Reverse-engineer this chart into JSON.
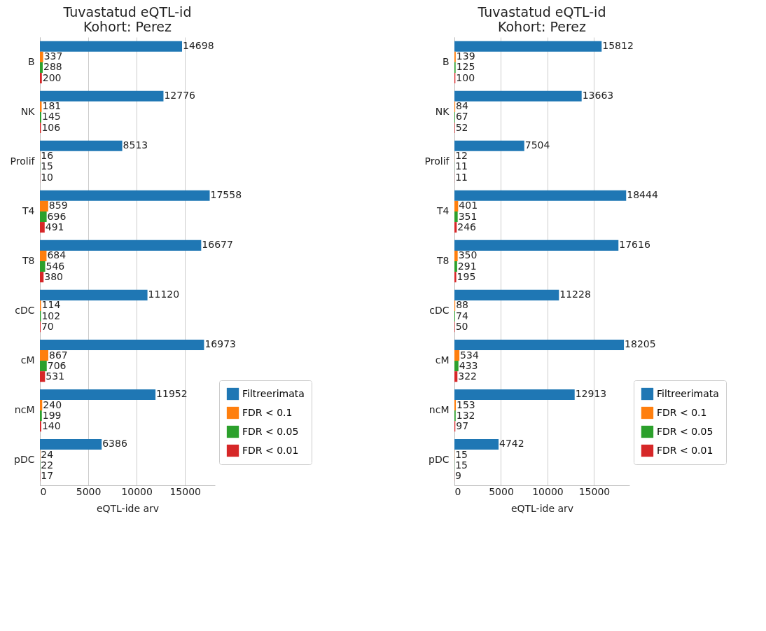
{
  "chart_data": [
    {
      "type": "bar",
      "orientation": "horizontal",
      "title": "Tuvastatud eQTL-id\nKohort: Perez",
      "xlabel": "eQTL-ide arv",
      "categories": [
        "B",
        "NK",
        "Prolif",
        "T4",
        "T8",
        "cDC",
        "cM",
        "ncM",
        "pDC"
      ],
      "series": [
        {
          "name": "Filtreerimata",
          "color": "#1f77b4",
          "values": [
            14698,
            12776,
            8513,
            17558,
            16677,
            11120,
            16973,
            11952,
            6386
          ]
        },
        {
          "name": "FDR < 0.1",
          "color": "#ff7f0e",
          "values": [
            337,
            181,
            16,
            859,
            684,
            114,
            867,
            240,
            24
          ]
        },
        {
          "name": "FDR < 0.05",
          "color": "#2ca02c",
          "values": [
            288,
            145,
            15,
            696,
            546,
            102,
            706,
            199,
            22
          ]
        },
        {
          "name": "FDR < 0.01",
          "color": "#d62728",
          "values": [
            200,
            106,
            10,
            491,
            380,
            70,
            531,
            140,
            17
          ]
        }
      ],
      "xlim": [
        0,
        18100
      ],
      "xticks": [
        0,
        5000,
        10000,
        15000
      ],
      "grid": "x",
      "legend": "bottom right",
      "data_labels": true
    },
    {
      "type": "bar",
      "orientation": "horizontal",
      "title": "Tuvastatud eQTL-id\nKohort: Perez",
      "xlabel": "eQTL-ide arv",
      "categories": [
        "B",
        "NK",
        "Prolif",
        "T4",
        "T8",
        "cDC",
        "cM",
        "ncM",
        "pDC"
      ],
      "series": [
        {
          "name": "Filtreerimata",
          "color": "#1f77b4",
          "values": [
            15812,
            13663,
            7504,
            18444,
            17616,
            11228,
            18205,
            12913,
            4742
          ]
        },
        {
          "name": "FDR < 0.1",
          "color": "#ff7f0e",
          "values": [
            139,
            84,
            12,
            401,
            350,
            88,
            534,
            153,
            15
          ]
        },
        {
          "name": "FDR < 0.05",
          "color": "#2ca02c",
          "values": [
            125,
            67,
            11,
            351,
            291,
            74,
            433,
            132,
            15
          ]
        },
        {
          "name": "FDR < 0.01",
          "color": "#d62728",
          "values": [
            100,
            52,
            11,
            246,
            195,
            50,
            322,
            97,
            9
          ]
        }
      ],
      "xlim": [
        0,
        18800
      ],
      "xticks": [
        0,
        5000,
        10000,
        15000
      ],
      "grid": "x",
      "legend": "bottom right",
      "data_labels": true
    }
  ]
}
